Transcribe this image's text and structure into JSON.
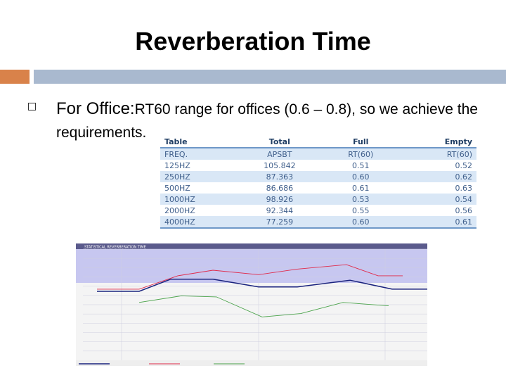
{
  "slide": {
    "title": "Reverberation Time",
    "bullet_lead": "For Office:",
    "bullet_rest": "RT60 range for offices (0.6 – 0.8), so we achieve the requirements."
  },
  "table": {
    "headers": [
      "Table",
      "Total",
      "Full",
      "Empty"
    ],
    "rows": [
      [
        "FREQ.",
        "APSBT",
        "RT(60)",
        "RT(60)"
      ],
      [
        "125HZ",
        "105.842",
        "0.51",
        "0.52"
      ],
      [
        "250HZ",
        "87.363",
        "0.60",
        "0.62"
      ],
      [
        "500HZ",
        "86.686",
        "0.61",
        "0.63"
      ],
      [
        "1000HZ",
        "98.926",
        "0.53",
        "0.54"
      ],
      [
        "2000HZ",
        "92.344",
        "0.55",
        "0.56"
      ],
      [
        "4000HZ",
        "77.259",
        "0.60",
        "0.61"
      ]
    ]
  },
  "chart_data": {
    "type": "line",
    "title": "STATISTICAL REVERBERATION TIME",
    "series": [
      {
        "name": "",
        "color": "#1a237e",
        "points": [
          [
            0.06,
            0.38
          ],
          [
            0.18,
            0.38
          ],
          [
            0.27,
            0.27
          ],
          [
            0.39,
            0.27
          ],
          [
            0.52,
            0.34
          ],
          [
            0.63,
            0.34
          ],
          [
            0.78,
            0.28
          ],
          [
            0.9,
            0.36
          ],
          [
            1.0,
            0.36
          ]
        ]
      },
      {
        "name": "",
        "color": "#e02a4a",
        "points": [
          [
            0.06,
            0.36
          ],
          [
            0.18,
            0.36
          ],
          [
            0.29,
            0.24
          ],
          [
            0.39,
            0.19
          ],
          [
            0.52,
            0.23
          ],
          [
            0.63,
            0.18
          ],
          [
            0.77,
            0.14
          ],
          [
            0.86,
            0.24
          ],
          [
            0.93,
            0.24
          ]
        ]
      },
      {
        "name": "",
        "color": "#4aa34a",
        "points": [
          [
            0.18,
            0.48
          ],
          [
            0.3,
            0.42
          ],
          [
            0.4,
            0.43
          ],
          [
            0.53,
            0.61
          ],
          [
            0.64,
            0.58
          ],
          [
            0.76,
            0.48
          ],
          [
            0.89,
            0.51
          ]
        ]
      }
    ]
  }
}
